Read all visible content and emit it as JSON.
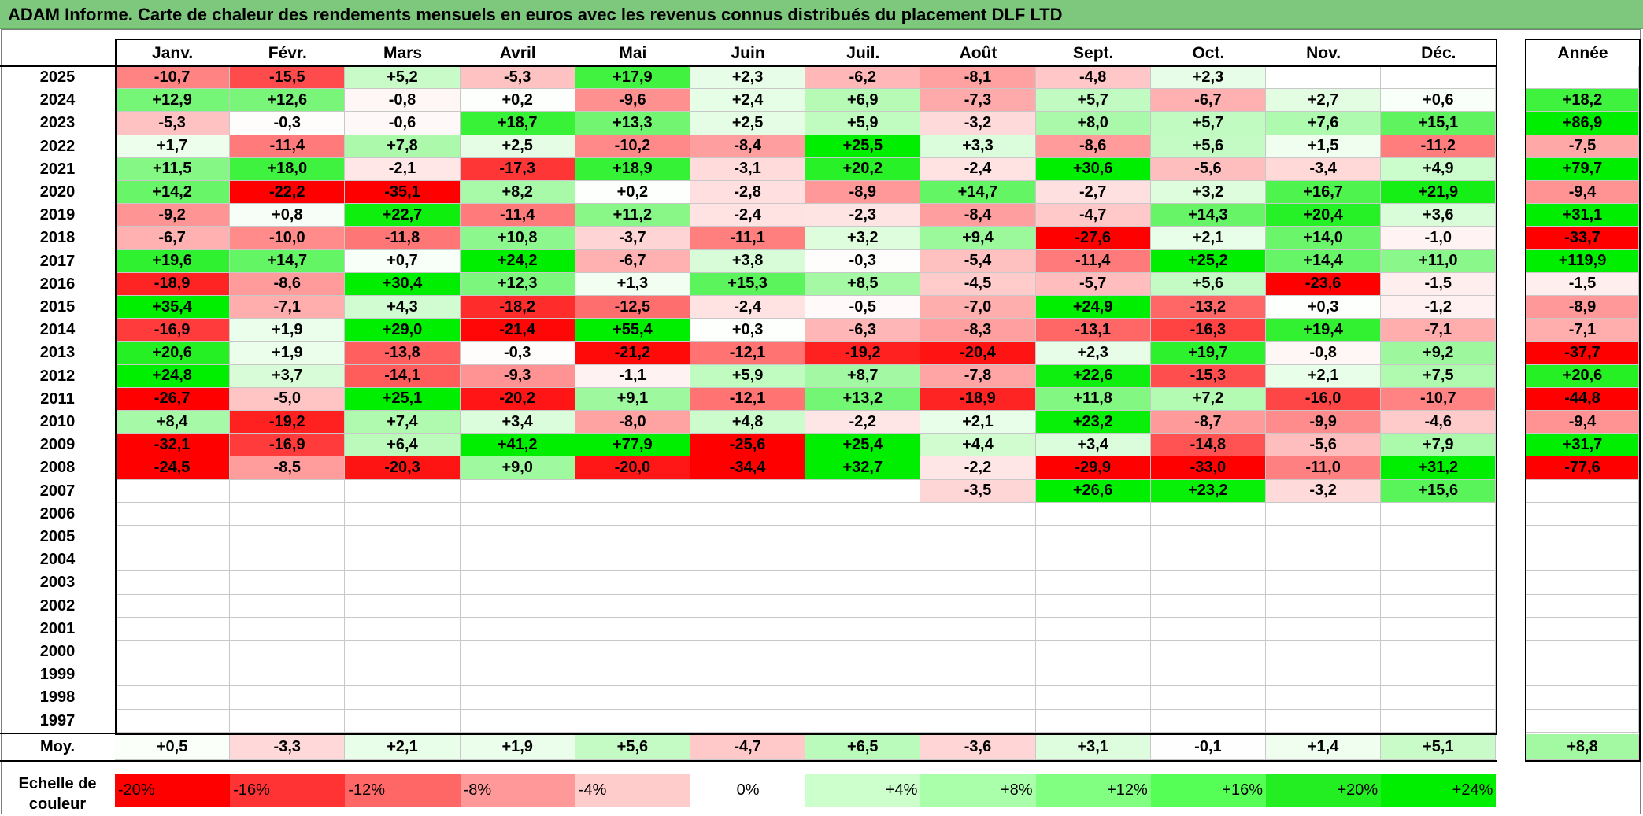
{
  "title": "ADAM Informe. Carte de chaleur des rendements mensuels en euros avec les revenus connus distribués du placement DLF LTD",
  "chart_data": {
    "type": "heatmap",
    "months": [
      "Janv.",
      "Févr.",
      "Mars",
      "Avril",
      "Mai",
      "Juin",
      "Juil.",
      "Août",
      "Sept.",
      "Oct.",
      "Nov.",
      "Déc."
    ],
    "year_header": "Année",
    "rows": [
      {
        "year": "2025",
        "values": [
          "-10,7",
          "-15,5",
          "+5,2",
          "-5,3",
          "+17,9",
          "+2,3",
          "-6,2",
          "-8,1",
          "-4,8",
          "+2,3",
          "",
          ""
        ],
        "annual": ""
      },
      {
        "year": "2024",
        "values": [
          "+12,9",
          "+12,6",
          "-0,8",
          "+0,2",
          "-9,6",
          "+2,4",
          "+6,9",
          "-7,3",
          "+5,7",
          "-6,7",
          "+2,7",
          "+0,6"
        ],
        "annual": "+18,2"
      },
      {
        "year": "2023",
        "values": [
          "-5,3",
          "-0,3",
          "-0,6",
          "+18,7",
          "+13,3",
          "+2,5",
          "+5,9",
          "-3,2",
          "+8,0",
          "+5,7",
          "+7,6",
          "+15,1"
        ],
        "annual": "+86,9"
      },
      {
        "year": "2022",
        "values": [
          "+1,7",
          "-11,4",
          "+7,8",
          "+2,5",
          "-10,2",
          "-8,4",
          "+25,5",
          "+3,3",
          "-8,6",
          "+5,6",
          "+1,5",
          "-11,2"
        ],
        "annual": "-7,5"
      },
      {
        "year": "2021",
        "values": [
          "+11,5",
          "+18,0",
          "-2,1",
          "-17,3",
          "+18,9",
          "-3,1",
          "+20,2",
          "-2,4",
          "+30,6",
          "-5,6",
          "-3,4",
          "+4,9"
        ],
        "annual": "+79,7"
      },
      {
        "year": "2020",
        "values": [
          "+14,2",
          "-22,2",
          "-35,1",
          "+8,2",
          "+0,2",
          "-2,8",
          "-8,9",
          "+14,7",
          "-2,7",
          "+3,2",
          "+16,7",
          "+21,9"
        ],
        "annual": "-9,4"
      },
      {
        "year": "2019",
        "values": [
          "-9,2",
          "+0,8",
          "+22,7",
          "-11,4",
          "+11,2",
          "-2,4",
          "-2,3",
          "-8,4",
          "-4,7",
          "+14,3",
          "+20,4",
          "+3,6"
        ],
        "annual": "+31,1"
      },
      {
        "year": "2018",
        "values": [
          "-6,7",
          "-10,0",
          "-11,8",
          "+10,8",
          "-3,7",
          "-11,1",
          "+3,2",
          "+9,4",
          "-27,6",
          "+2,1",
          "+14,0",
          "-1,0"
        ],
        "annual": "-33,7"
      },
      {
        "year": "2017",
        "values": [
          "+19,6",
          "+14,7",
          "+0,7",
          "+24,2",
          "-6,7",
          "+3,8",
          "-0,3",
          "-5,4",
          "-11,4",
          "+25,2",
          "+14,4",
          "+11,0"
        ],
        "annual": "+119,9"
      },
      {
        "year": "2016",
        "values": [
          "-18,9",
          "-8,6",
          "+30,4",
          "+12,3",
          "+1,3",
          "+15,3",
          "+8,5",
          "-4,5",
          "-5,7",
          "+5,6",
          "-23,6",
          "-1,5"
        ],
        "annual": "-1,5"
      },
      {
        "year": "2015",
        "values": [
          "+35,4",
          "-7,1",
          "+4,3",
          "-18,2",
          "-12,5",
          "-2,4",
          "-0,5",
          "-7,0",
          "+24,9",
          "-13,2",
          "+0,3",
          "-1,2"
        ],
        "annual": "-8,9"
      },
      {
        "year": "2014",
        "values": [
          "-16,9",
          "+1,9",
          "+29,0",
          "-21,4",
          "+55,4",
          "+0,3",
          "-6,3",
          "-8,3",
          "-13,1",
          "-16,3",
          "+19,4",
          "-7,1"
        ],
        "annual": "-7,1"
      },
      {
        "year": "2013",
        "values": [
          "+20,6",
          "+1,9",
          "-13,8",
          "-0,3",
          "-21,2",
          "-12,1",
          "-19,2",
          "-20,4",
          "+2,3",
          "+19,7",
          "-0,8",
          "+9,2"
        ],
        "annual": "-37,7"
      },
      {
        "year": "2012",
        "values": [
          "+24,8",
          "+3,7",
          "-14,1",
          "-9,3",
          "-1,1",
          "+5,9",
          "+8,7",
          "-7,8",
          "+22,6",
          "-15,3",
          "+2,1",
          "+7,5"
        ],
        "annual": "+20,6"
      },
      {
        "year": "2011",
        "values": [
          "-26,7",
          "-5,0",
          "+25,1",
          "-20,2",
          "+9,1",
          "-12,1",
          "+13,2",
          "-18,9",
          "+11,8",
          "+7,2",
          "-16,0",
          "-10,7"
        ],
        "annual": "-44,8"
      },
      {
        "year": "2010",
        "values": [
          "+8,4",
          "-19,2",
          "+7,4",
          "+3,4",
          "-8,0",
          "+4,8",
          "-2,2",
          "+2,1",
          "+23,2",
          "-8,7",
          "-9,9",
          "-4,6"
        ],
        "annual": "-9,4"
      },
      {
        "year": "2009",
        "values": [
          "-32,1",
          "-16,9",
          "+6,4",
          "+41,2",
          "+77,9",
          "-25,6",
          "+25,4",
          "+4,4",
          "+3,4",
          "-14,8",
          "-5,6",
          "+7,9"
        ],
        "annual": "+31,7"
      },
      {
        "year": "2008",
        "values": [
          "-24,5",
          "-8,5",
          "-20,3",
          "+9,0",
          "-20,0",
          "-34,4",
          "+32,7",
          "-2,2",
          "-29,9",
          "-33,0",
          "-11,0",
          "+31,2"
        ],
        "annual": "-77,6"
      },
      {
        "year": "2007",
        "values": [
          "",
          "",
          "",
          "",
          "",
          "",
          "",
          "-3,5",
          "+26,6",
          "+23,2",
          "-3,2",
          "+15,6"
        ],
        "annual": ""
      },
      {
        "year": "2006",
        "values": [
          "",
          "",
          "",
          "",
          "",
          "",
          "",
          "",
          "",
          "",
          "",
          ""
        ],
        "annual": ""
      },
      {
        "year": "2005",
        "values": [
          "",
          "",
          "",
          "",
          "",
          "",
          "",
          "",
          "",
          "",
          "",
          ""
        ],
        "annual": ""
      },
      {
        "year": "2004",
        "values": [
          "",
          "",
          "",
          "",
          "",
          "",
          "",
          "",
          "",
          "",
          "",
          ""
        ],
        "annual": ""
      },
      {
        "year": "2003",
        "values": [
          "",
          "",
          "",
          "",
          "",
          "",
          "",
          "",
          "",
          "",
          "",
          ""
        ],
        "annual": ""
      },
      {
        "year": "2002",
        "values": [
          "",
          "",
          "",
          "",
          "",
          "",
          "",
          "",
          "",
          "",
          "",
          ""
        ],
        "annual": ""
      },
      {
        "year": "2001",
        "values": [
          "",
          "",
          "",
          "",
          "",
          "",
          "",
          "",
          "",
          "",
          "",
          ""
        ],
        "annual": ""
      },
      {
        "year": "2000",
        "values": [
          "",
          "",
          "",
          "",
          "",
          "",
          "",
          "",
          "",
          "",
          "",
          ""
        ],
        "annual": ""
      },
      {
        "year": "1999",
        "values": [
          "",
          "",
          "",
          "",
          "",
          "",
          "",
          "",
          "",
          "",
          "",
          ""
        ],
        "annual": ""
      },
      {
        "year": "1998",
        "values": [
          "",
          "",
          "",
          "",
          "",
          "",
          "",
          "",
          "",
          "",
          "",
          ""
        ],
        "annual": ""
      },
      {
        "year": "1997",
        "values": [
          "",
          "",
          "",
          "",
          "",
          "",
          "",
          "",
          "",
          "",
          "",
          ""
        ],
        "annual": ""
      }
    ],
    "average": {
      "label": "Moy.",
      "values": [
        "+0,5",
        "-3,3",
        "+2,1",
        "+1,9",
        "+5,6",
        "-4,7",
        "+6,5",
        "-3,6",
        "+3,1",
        "-0,1",
        "+1,4",
        "+5,1"
      ],
      "annual": "+8,8"
    },
    "color_scale": {
      "label": "Echelle de couleur",
      "labels": [
        "-20%",
        "-16%",
        "-12%",
        "-8%",
        "-4%",
        "0%",
        "+4%",
        "+8%",
        "+12%",
        "+16%",
        "+20%",
        "+24%"
      ],
      "colors": [
        "#ff0000",
        "#ff3333",
        "#ff6666",
        "#ff9999",
        "#ffcccc",
        "#ffffff",
        "#ccffcc",
        "#aaffaa",
        "#80ff80",
        "#55ff55",
        "#22ee22",
        "#00ee00"
      ]
    },
    "colors": {
      "negative_max": "#ff0000",
      "neutral": "#ffffff",
      "positive_max": "#00ee00",
      "title_bar": "#7ec87e"
    }
  }
}
